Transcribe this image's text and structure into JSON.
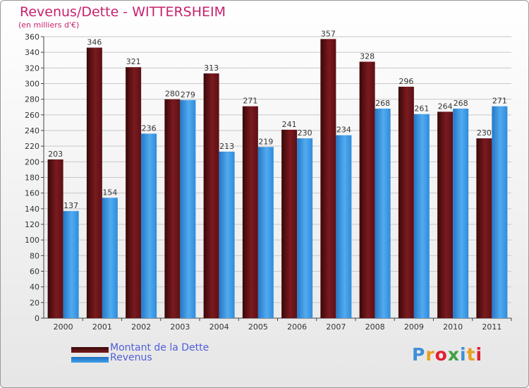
{
  "chart_data": {
    "type": "bar",
    "title": "Revenus/Dette - WITTERSHEIM",
    "subtitle": "(en milliers d'€)",
    "categories": [
      "2000",
      "2001",
      "2002",
      "2003",
      "2004",
      "2005",
      "2006",
      "2007",
      "2008",
      "2009",
      "2010",
      "2011"
    ],
    "series": [
      {
        "name": "Montant de la Dette",
        "color": "#7a1a1f",
        "values": [
          203,
          346,
          321,
          280,
          313,
          271,
          241,
          357,
          328,
          296,
          264,
          230
        ]
      },
      {
        "name": "Revenus",
        "color": "#3f9fe8",
        "values": [
          137,
          154,
          236,
          279,
          213,
          219,
          230,
          234,
          268,
          261,
          268,
          271
        ]
      }
    ],
    "ylim": [
      0,
      360
    ],
    "ytick_step": 20,
    "grid": true,
    "legend": "bottom-left"
  },
  "logo": {
    "text": "Proxiti",
    "colors": [
      "#3f8fd8",
      "#e8a020",
      "#e02030",
      "#40a040",
      "#3f8fd8",
      "#e8a020",
      "#e02030"
    ]
  }
}
